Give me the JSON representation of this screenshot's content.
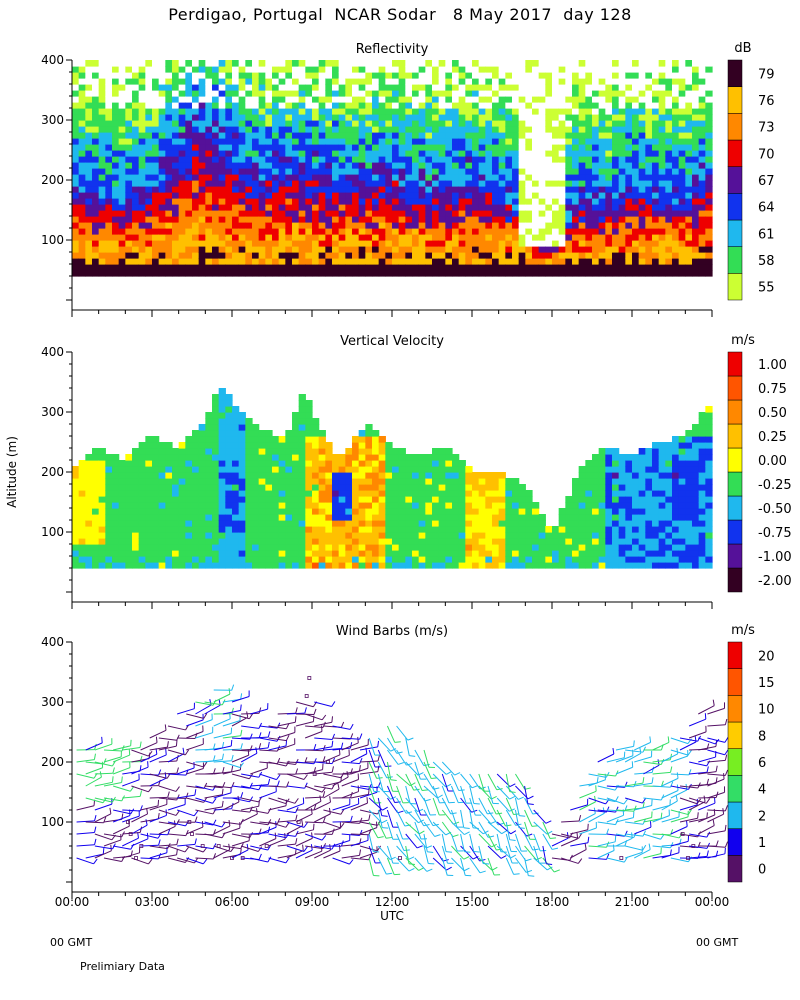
{
  "page": {
    "title": "Perdigao, Portugal  NCAR Sodar   8 May 2017  day 128",
    "footer_left_gmt": "00 GMT",
    "footer_right_gmt": "00 GMT",
    "footer_note": "Prelimiary Data"
  },
  "colors": {
    "palette": [
      "#CCFF33",
      "#33DD55",
      "#1FB8EE",
      "#1133EE",
      "#551199",
      "#EE0000",
      "#FF8800",
      "#FFC000",
      "#330022"
    ],
    "velocity_palette": [
      "#330022",
      "#551199",
      "#1133EE",
      "#1FB8EE",
      "#33DD55",
      "#FFFF00",
      "#FFC000",
      "#FF8800",
      "#FF5500",
      "#EE0000"
    ],
    "barb_palette": [
      "#551166",
      "#1100EE",
      "#1FB8EE",
      "#33DD66",
      "#77EE22",
      "#FFCC00",
      "#FF8800",
      "#FF5500",
      "#EE0000"
    ]
  },
  "chart_data": [
    {
      "type": "heatmap",
      "title": "Reflectivity",
      "units": "dB",
      "xlabel": "",
      "ylabel": "",
      "ylim": [
        0,
        400
      ],
      "yticks": [
        100,
        200,
        300,
        400
      ],
      "xlim_hours": [
        0,
        24
      ],
      "colorbar_labels": [
        "55",
        "58",
        "61",
        "64",
        "67",
        "70",
        "73",
        "76",
        "79"
      ],
      "data_height_range_m": [
        40,
        400
      ],
      "description_profile": {
        "hours": [
          0,
          2,
          3,
          4,
          5,
          6,
          7,
          8,
          9,
          10,
          11,
          12,
          13,
          14,
          15,
          16,
          17,
          18,
          19,
          20,
          21,
          22,
          23,
          24
        ],
        "top_of_strong_echo_m": [
          200,
          170,
          200,
          260,
          320,
          250,
          220,
          230,
          220,
          210,
          200,
          220,
          200,
          190,
          210,
          200,
          150,
          80,
          180,
          170,
          200,
          180,
          190,
          230
        ]
      }
    },
    {
      "type": "heatmap",
      "title": "Vertical Velocity",
      "units": "m/s",
      "ylim": [
        0,
        400
      ],
      "yticks": [
        100,
        200,
        300,
        400
      ],
      "ylabel": "Altitude (m)",
      "colorbar_labels": [
        "-2.00",
        "-1.00",
        "-0.75",
        "-0.50",
        "-0.25",
        "0.00",
        "0.25",
        "0.50",
        "0.75",
        "1.00"
      ],
      "data_top_profile": {
        "hours": [
          0,
          1,
          2,
          3,
          4,
          5,
          5.5,
          6,
          7,
          8,
          8.7,
          9,
          10,
          11,
          11.5,
          12,
          13,
          14,
          15,
          16,
          17,
          18,
          19,
          20,
          21,
          22,
          23,
          24
        ],
        "top_m": [
          200,
          240,
          220,
          260,
          240,
          280,
          340,
          320,
          270,
          260,
          340,
          300,
          220,
          280,
          270,
          240,
          230,
          240,
          200,
          200,
          180,
          100,
          200,
          240,
          230,
          250,
          260,
          320
        ]
      }
    },
    {
      "type": "scatter",
      "title": "Wind Barbs (m/s)",
      "units": "m/s",
      "ylim": [
        0,
        400
      ],
      "yticks": [
        100,
        200,
        300,
        400
      ],
      "colorbar_labels": [
        "0",
        "1",
        "2",
        "4",
        "6",
        "8",
        "10",
        "15",
        "20"
      ],
      "xticks": [
        "00:00",
        "03:00",
        "06:00",
        "09:00",
        "12:00",
        "15:00",
        "18:00",
        "21:00",
        "00:00"
      ],
      "xlabel": "UTC"
    }
  ]
}
